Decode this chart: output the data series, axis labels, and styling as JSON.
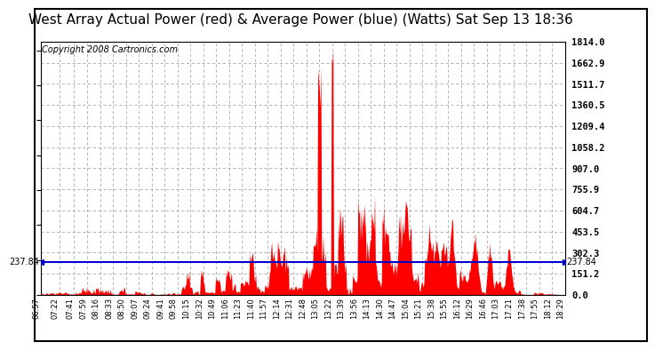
{
  "title": "West Array Actual Power (red) & Average Power (blue) (Watts) Sat Sep 13 18:36",
  "copyright": "Copyright 2008 Cartronics.com",
  "avg_power": 237.84,
  "y_max": 1814.0,
  "y_min": 0.0,
  "yticks": [
    0.0,
    151.2,
    302.3,
    453.5,
    604.7,
    755.9,
    907.0,
    1058.2,
    1209.4,
    1360.5,
    1511.7,
    1662.9,
    1814.0
  ],
  "background_color": "#ffffff",
  "grid_color": "#aaaaaa",
  "red_color": "#ff0000",
  "blue_color": "#0000cc",
  "title_fontsize": 11,
  "copyright_fontsize": 7,
  "x_start_minutes": 417,
  "x_end_minutes": 1109,
  "xtick_labels": [
    "06:57",
    "07:22",
    "07:41",
    "07:59",
    "08:16",
    "08:33",
    "08:50",
    "09:07",
    "09:24",
    "09:41",
    "09:58",
    "10:15",
    "10:32",
    "10:49",
    "11:06",
    "11:23",
    "11:40",
    "11:57",
    "12:14",
    "12:31",
    "12:48",
    "13:05",
    "13:22",
    "13:39",
    "13:56",
    "14:13",
    "14:30",
    "14:47",
    "15:04",
    "15:21",
    "15:38",
    "15:55",
    "16:12",
    "16:29",
    "16:46",
    "17:03",
    "17:21",
    "17:38",
    "17:55",
    "18:12",
    "18:29"
  ],
  "xtick_minutes": [
    417,
    442,
    461,
    479,
    496,
    513,
    530,
    547,
    564,
    581,
    598,
    615,
    632,
    649,
    666,
    683,
    700,
    717,
    734,
    751,
    768,
    785,
    802,
    819,
    836,
    853,
    870,
    887,
    904,
    921,
    938,
    955,
    972,
    989,
    1006,
    1023,
    1041,
    1058,
    1075,
    1092,
    1109
  ]
}
